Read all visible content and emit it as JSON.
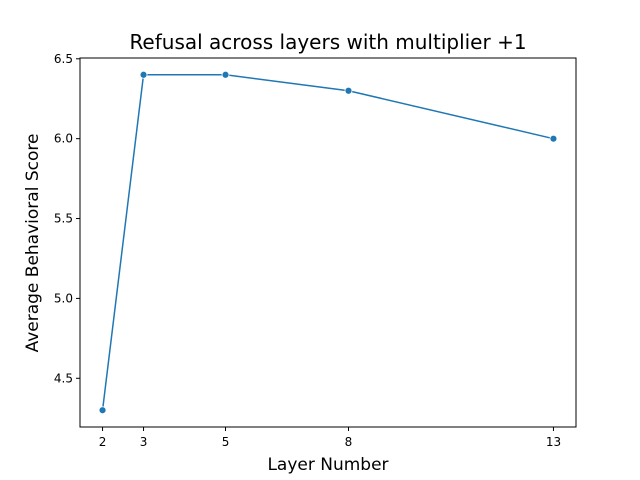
{
  "chart_data": {
    "type": "line",
    "title": "Refusal across layers with multiplier +1",
    "xlabel": "Layer Number",
    "ylabel": "Average Behavioral Score",
    "x": [
      2,
      3,
      5,
      8,
      13
    ],
    "x_ticks": [
      "2",
      "3",
      "5",
      "8",
      "13"
    ],
    "y_ticks": [
      "4.5",
      "5.0",
      "5.5",
      "6.0",
      "6.5"
    ],
    "xlim": [
      1.45,
      13.55
    ],
    "ylim": [
      4.195,
      6.505
    ],
    "grid": false,
    "series": [
      {
        "values": [
          4.3,
          6.4,
          6.4,
          6.3,
          6.0
        ],
        "color": "#1f77b4",
        "marker": "circle"
      }
    ]
  }
}
